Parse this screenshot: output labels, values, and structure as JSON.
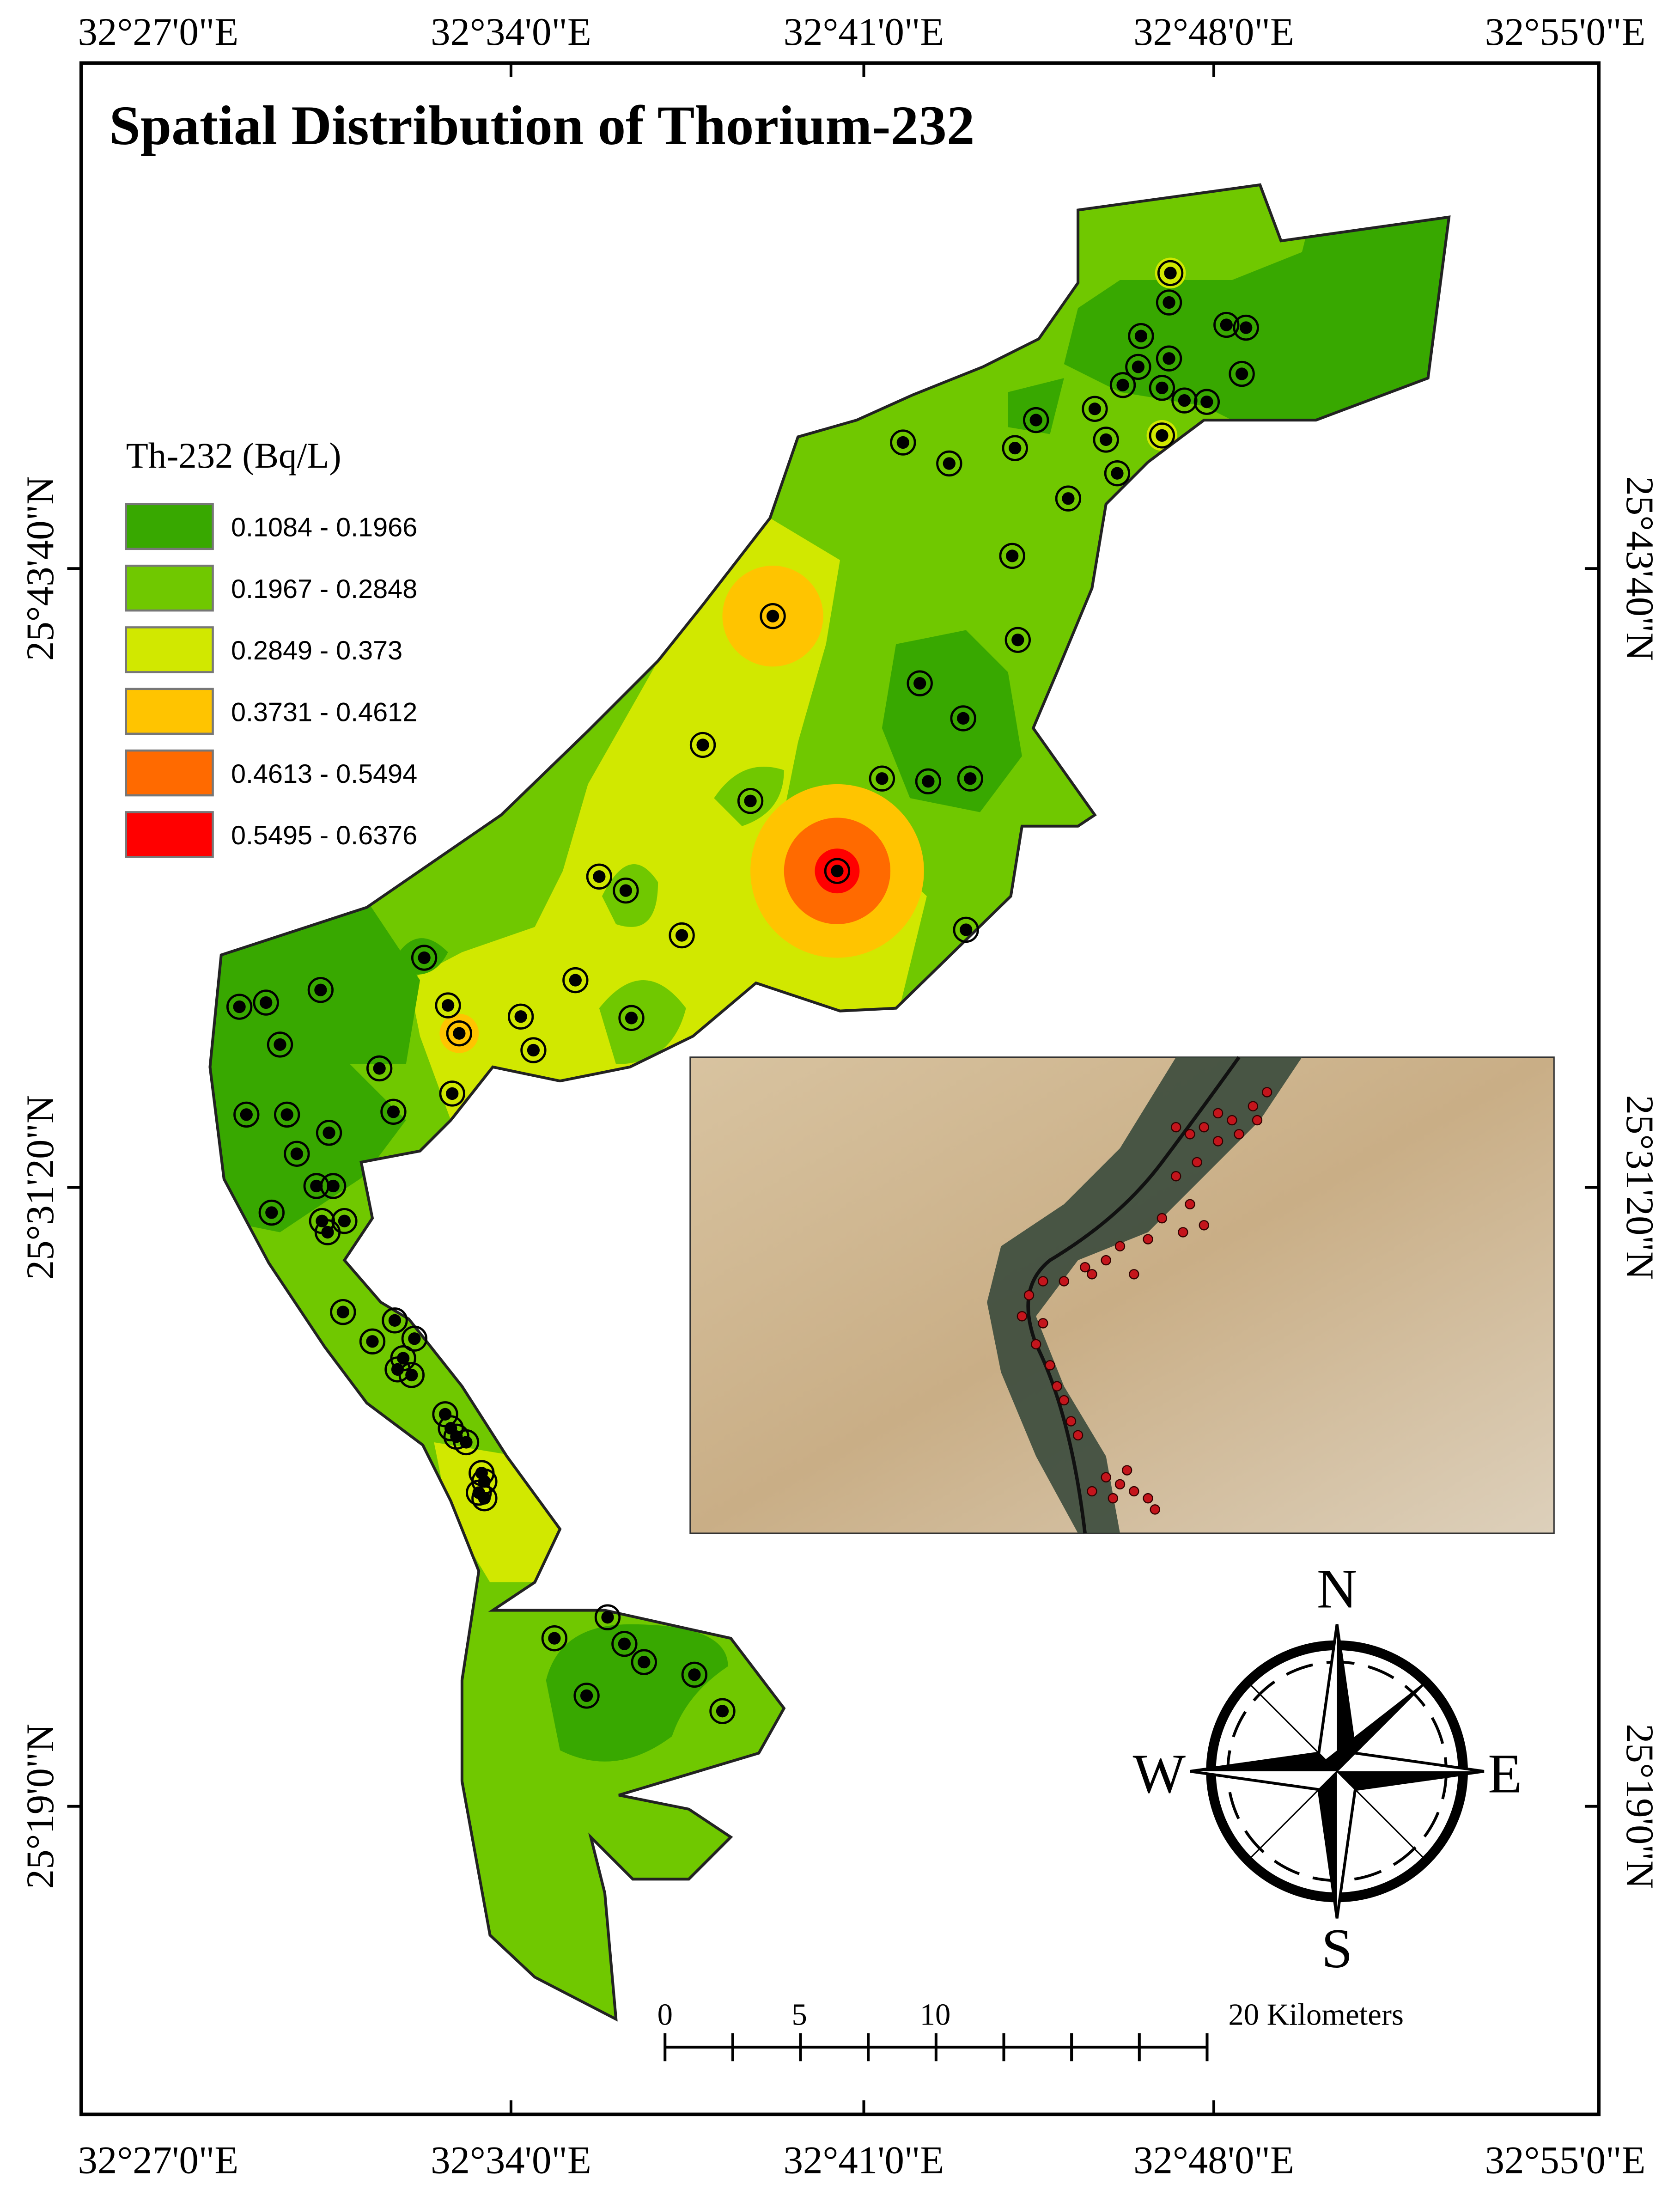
{
  "title": "Spatial Distribution of Thorium-232",
  "legend": {
    "title": "Th-232 (Bq/L)",
    "classes": [
      {
        "label": "0.1084 - 0.1966",
        "color": "#38a800"
      },
      {
        "label": "0.1967 - 0.2848",
        "color": "#70c800"
      },
      {
        "label": "0.2849 - 0.373",
        "color": "#d1e800"
      },
      {
        "label": "0.3731 - 0.4612",
        "color": "#ffc400"
      },
      {
        "label": "0.4613 - 0.5494",
        "color": "#ff6a00"
      },
      {
        "label": "0.5495 - 0.6376",
        "color": "#ff0000"
      }
    ]
  },
  "axes": {
    "top": [
      "32°27'0\"E",
      "32°34'0\"E",
      "32°41'0\"E",
      "32°48'0\"E",
      "32°55'0\"E"
    ],
    "bottom": [
      "32°27'0\"E",
      "32°34'0\"E",
      "32°41'0\"E",
      "32°48'0\"E",
      "32°55'0\"E"
    ],
    "left": [
      "25°43'40\"N",
      "25°31'20\"N",
      "25°19'0\"N"
    ],
    "right": [
      "25°43'40\"N",
      "25°31'20\"N",
      "25°19'0\"N"
    ]
  },
  "scale_bar": {
    "labels": [
      "0",
      "5",
      "10",
      "20 Kilometers"
    ]
  },
  "compass": {
    "north": "N",
    "east": "E",
    "south": "S",
    "west": "W"
  }
}
